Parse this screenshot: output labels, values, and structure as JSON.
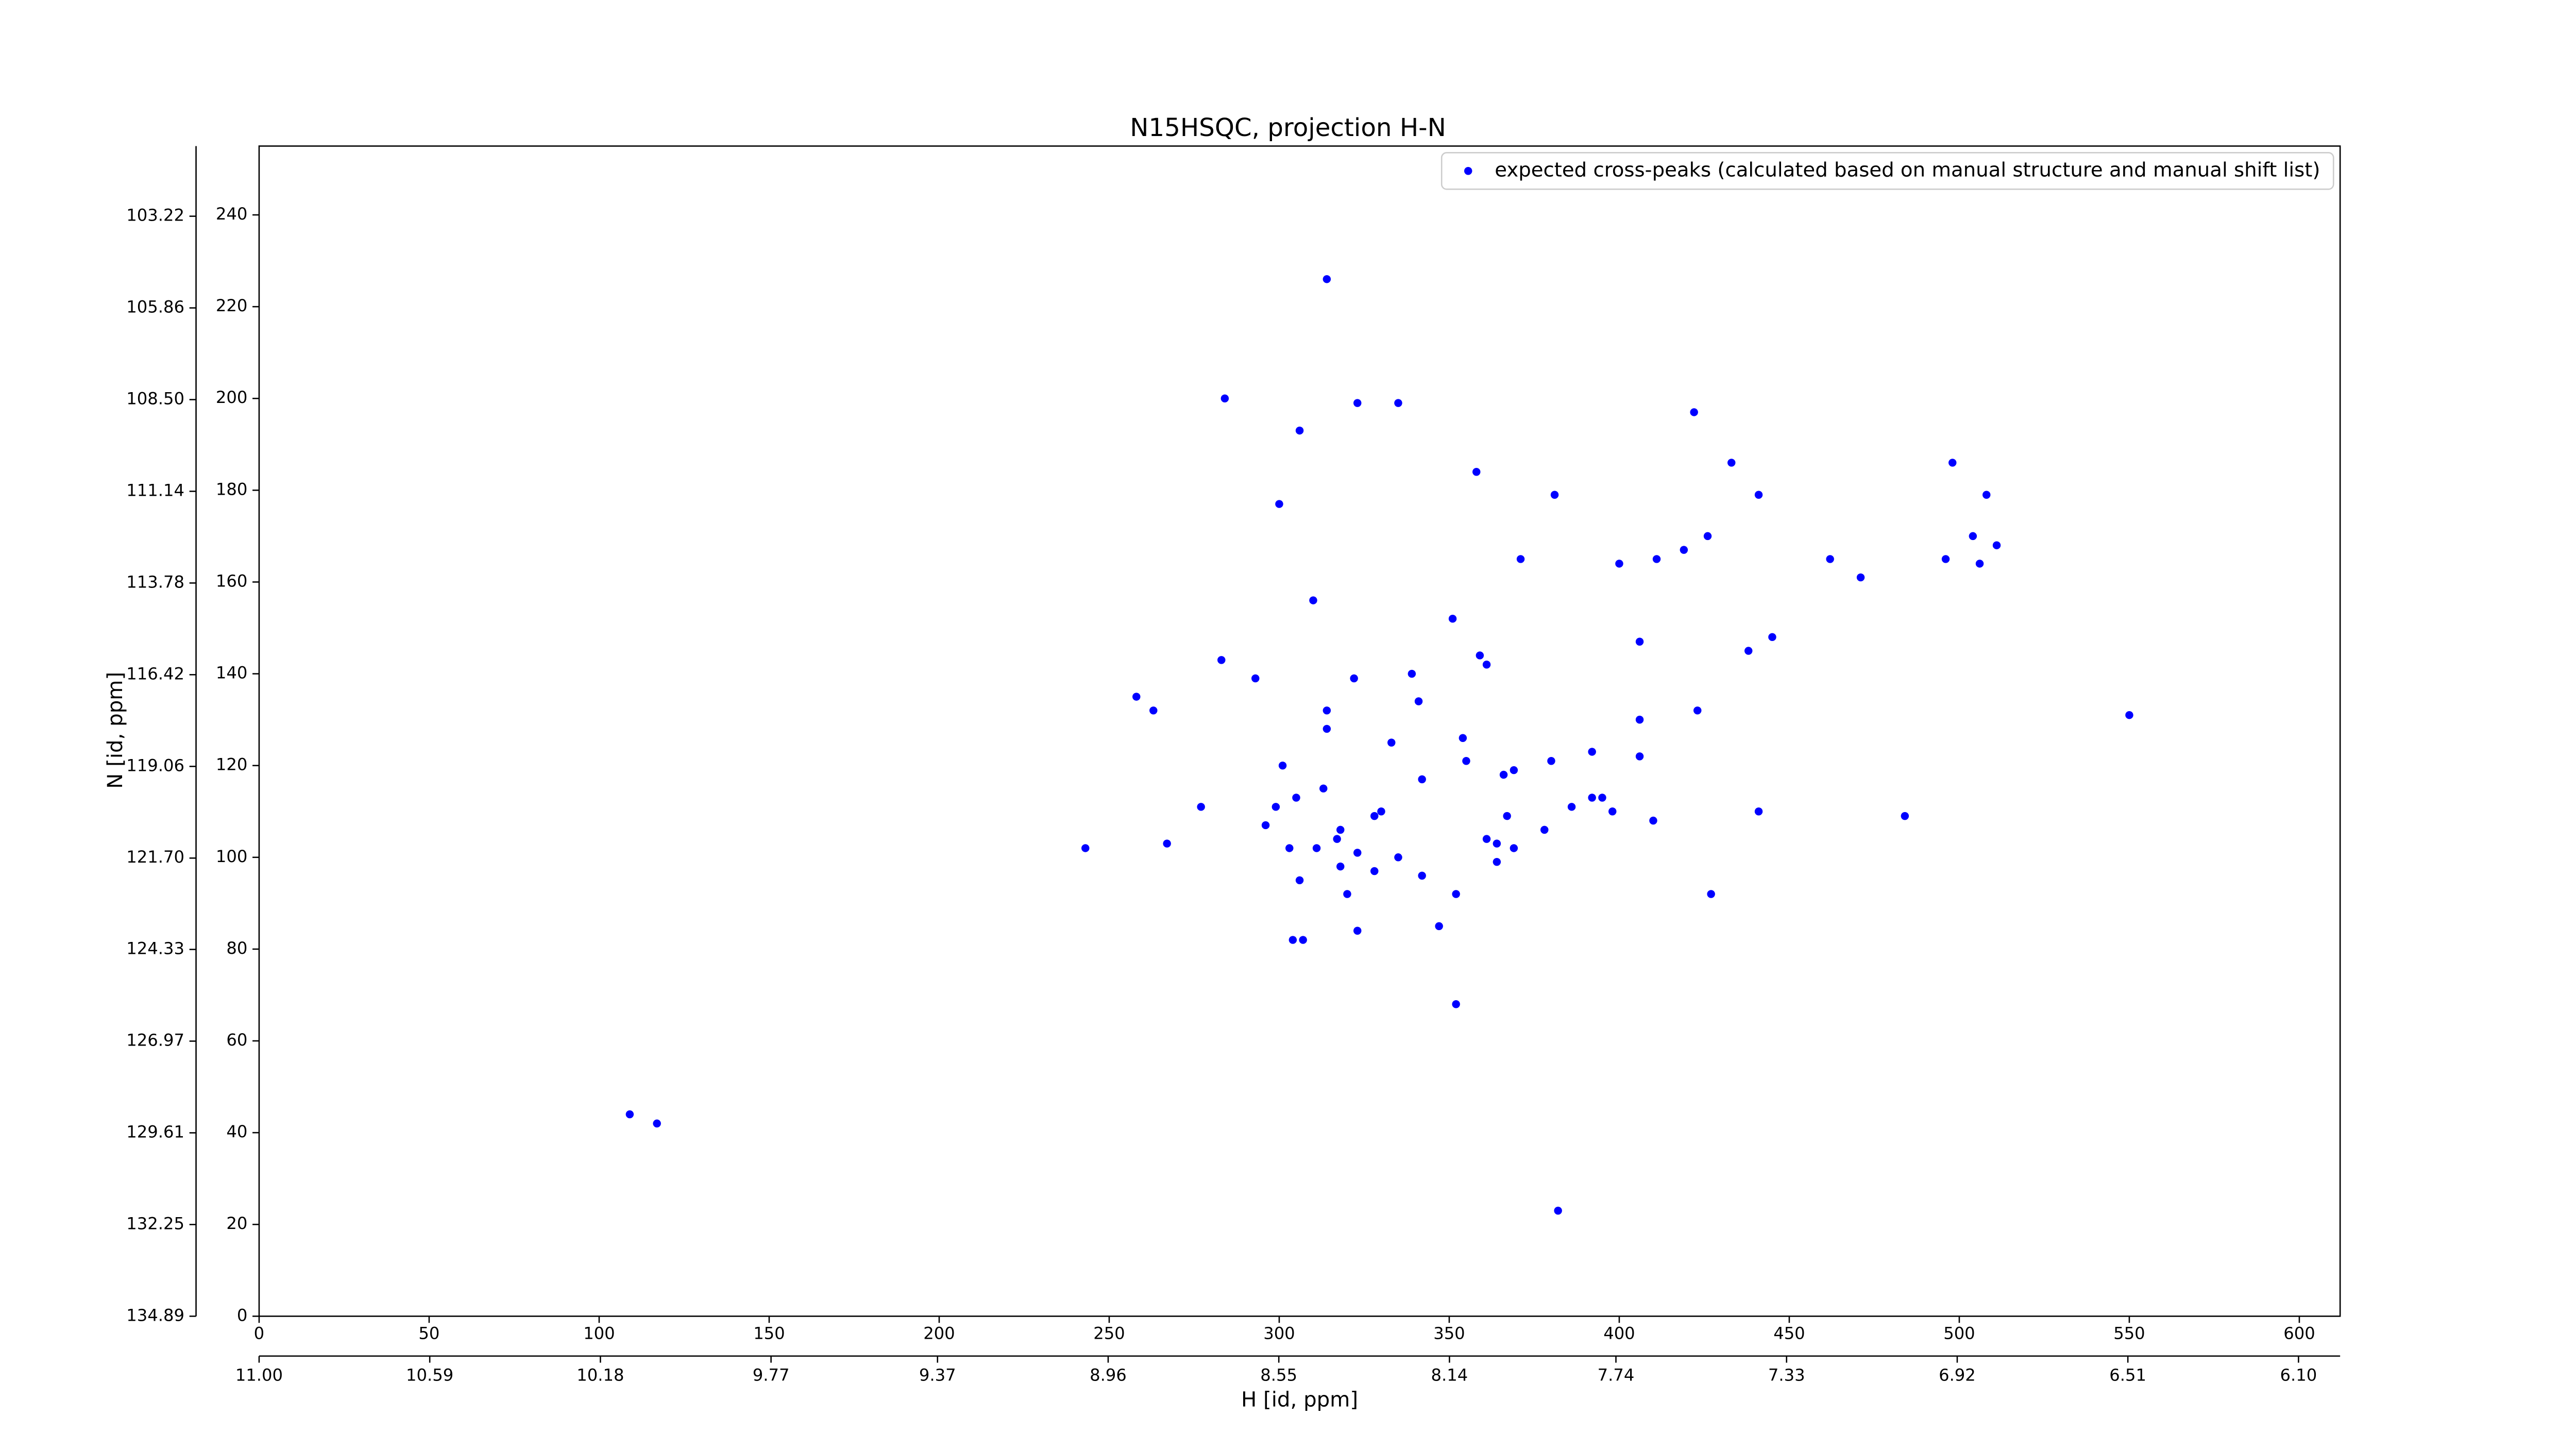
{
  "chart_data": {
    "type": "scatter",
    "title": "N15HSQC, projection H-N",
    "x_label": "H [id, ppm]",
    "y_label": "N [id, ppm]",
    "xlim": [
      0,
      612
    ],
    "ylim": [
      0,
      255
    ],
    "xticks": [
      0,
      50,
      100,
      150,
      200,
      250,
      300,
      350,
      400,
      450,
      500,
      550,
      600
    ],
    "yticks": [
      0,
      20,
      40,
      60,
      80,
      100,
      120,
      140,
      160,
      180,
      200,
      220,
      240
    ],
    "x2lim": [
      11.0,
      6.0
    ],
    "x2ticks": [
      {
        "value": 11.0,
        "label": "11.00"
      },
      10.59,
      10.18,
      9.77,
      9.37,
      8.96,
      8.55,
      8.14,
      7.74,
      7.33,
      6.92,
      6.51,
      {
        "value": 6.1,
        "label": "6.10"
      }
    ],
    "y2lim": [
      134.89,
      101.2
    ],
    "y2ticks": [
      134.89,
      132.25,
      129.61,
      126.97,
      124.33,
      {
        "value": 121.7,
        "label": "121.70"
      },
      119.06,
      116.42,
      113.78,
      111.14,
      {
        "value": 108.5,
        "label": "108.50"
      },
      105.86,
      103.22
    ],
    "legend": "upper right",
    "series": [
      {
        "name": "expected cross-peaks (calculated based on manual structure and manual shift list)",
        "color": "#0000ff",
        "x": [
          314,
          284,
          323,
          335,
          306,
          422,
          433,
          358,
          381,
          300,
          441,
          498,
          508,
          371,
          400,
          411,
          426,
          419,
          462,
          471,
          496,
          506,
          504,
          511,
          310,
          351,
          406,
          438,
          445,
          283,
          359,
          361,
          293,
          322,
          339,
          258,
          263,
          314,
          341,
          406,
          423,
          550,
          314,
          333,
          354,
          406,
          392,
          301,
          355,
          380,
          366,
          369,
          342,
          313,
          305,
          299,
          392,
          395,
          386,
          398,
          277,
          441,
          330,
          328,
          318,
          317,
          361,
          367,
          378,
          410,
          484,
          296,
          243,
          267,
          303,
          311,
          323,
          335,
          364,
          369,
          364,
          318,
          328,
          342,
          306,
          320,
          352,
          427,
          347,
          323,
          304,
          307,
          352,
          109,
          117,
          382
        ],
        "y": [
          226,
          200,
          199,
          199,
          193,
          197,
          186,
          184,
          179,
          177,
          179,
          186,
          179,
          165,
          164,
          165,
          170,
          167,
          165,
          161,
          165,
          164,
          170,
          168,
          156,
          152,
          147,
          145,
          148,
          143,
          144,
          142,
          139,
          139,
          140,
          135,
          132,
          132,
          134,
          130,
          132,
          131,
          128,
          125,
          126,
          122,
          123,
          120,
          121,
          121,
          118,
          119,
          117,
          115,
          113,
          111,
          113,
          113,
          111,
          110,
          111,
          110,
          110,
          109,
          106,
          104,
          104,
          109,
          106,
          108,
          109,
          107,
          102,
          103,
          102,
          102,
          101,
          100,
          103,
          102,
          99,
          98,
          97,
          96,
          95,
          92,
          92,
          92,
          85,
          84,
          82,
          82,
          68,
          44,
          42,
          23
        ]
      }
    ]
  }
}
